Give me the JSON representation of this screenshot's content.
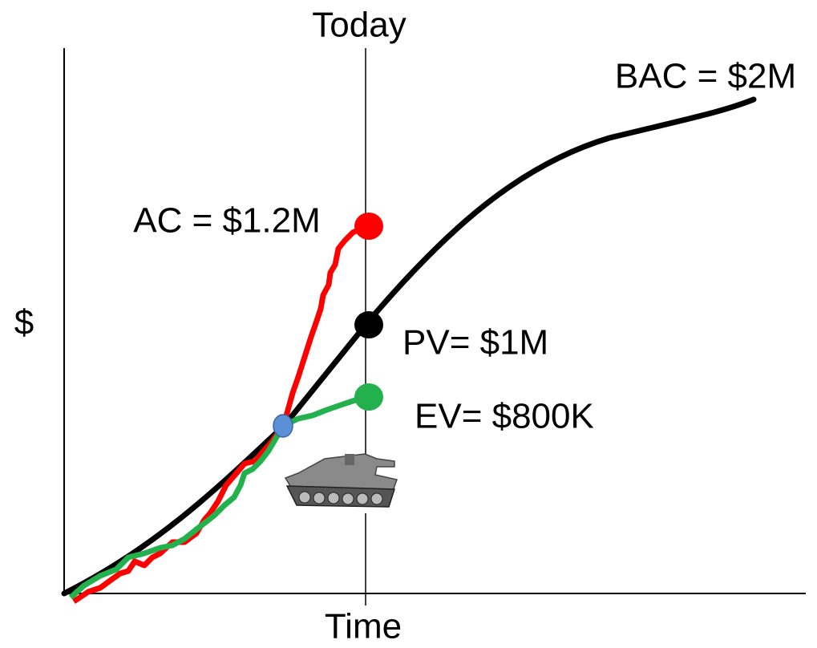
{
  "diagram": {
    "today_label": "Today",
    "x_axis_label": "Time",
    "y_axis_label": "$",
    "bac_label": "BAC = $2M",
    "ac_label": "AC = $1.2M",
    "pv_label": "PV= $1M",
    "ev_label": "EV= $800K"
  }
}
